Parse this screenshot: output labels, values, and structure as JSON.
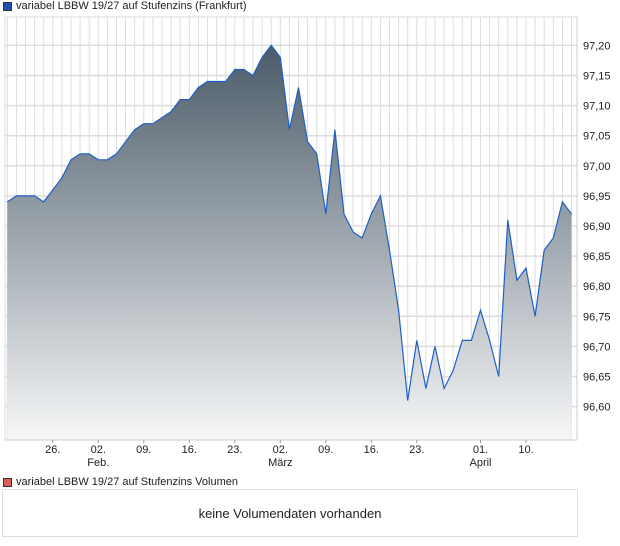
{
  "chart_data": {
    "type": "area",
    "title": "variabel LBBW 19/27 auf Stufenzins (Frankfurt)",
    "series": [
      {
        "name": "variabel LBBW 19/27 auf Stufenzins (Frankfurt)",
        "values": [
          96.94,
          96.95,
          96.95,
          96.95,
          96.94,
          96.96,
          96.98,
          97.01,
          97.02,
          97.02,
          97.01,
          97.01,
          97.02,
          97.04,
          97.06,
          97.07,
          97.07,
          97.08,
          97.09,
          97.11,
          97.11,
          97.13,
          97.14,
          97.14,
          97.14,
          97.16,
          97.16,
          97.15,
          97.18,
          97.2,
          97.18,
          97.06,
          97.13,
          97.04,
          97.02,
          96.92,
          97.06,
          96.92,
          96.89,
          96.88,
          96.92,
          96.95,
          96.86,
          96.76,
          96.61,
          96.71,
          96.63,
          96.7,
          96.63,
          96.66,
          96.71,
          96.71,
          96.76,
          96.71,
          96.65,
          96.91,
          96.81,
          96.83,
          96.75,
          96.86,
          96.88,
          96.94,
          96.92
        ]
      }
    ],
    "x_ticks": [
      {
        "label": "26.",
        "month": "",
        "index": 5
      },
      {
        "label": "02.",
        "month": "Feb.",
        "index": 10
      },
      {
        "label": "09.",
        "month": "",
        "index": 15
      },
      {
        "label": "16.",
        "month": "",
        "index": 20
      },
      {
        "label": "23.",
        "month": "",
        "index": 25
      },
      {
        "label": "02.",
        "month": "März",
        "index": 30
      },
      {
        "label": "09.",
        "month": "",
        "index": 35
      },
      {
        "label": "16.",
        "month": "",
        "index": 40
      },
      {
        "label": "23.",
        "month": "",
        "index": 45
      },
      {
        "label": "01.",
        "month": "April",
        "index": 52
      },
      {
        "label": "10.",
        "month": "",
        "index": 57
      }
    ],
    "y_ticks": [
      "96,60",
      "96,65",
      "96,70",
      "96,75",
      "96,80",
      "96,85",
      "96,90",
      "96,95",
      "97,00",
      "97,05",
      "97,10",
      "97,15",
      "97,20"
    ],
    "ylim": [
      96.55,
      97.265
    ],
    "y_axis_position": "right",
    "grid": true,
    "colors": {
      "line": "#1f5fc8",
      "fill_top": "#4b5b68",
      "fill_bottom": "#f6f7f8",
      "grid": "#dddddd"
    }
  },
  "legend": {
    "price_label": "variabel LBBW 19/27 auf Stufenzins (Frankfurt)",
    "price_color": "#1f4fb0",
    "volume_label": "variabel LBBW 19/27 auf Stufenzins Volumen",
    "volume_color": "#d9605a"
  },
  "volume": {
    "empty_message": "keine Volumendaten vorhanden"
  }
}
